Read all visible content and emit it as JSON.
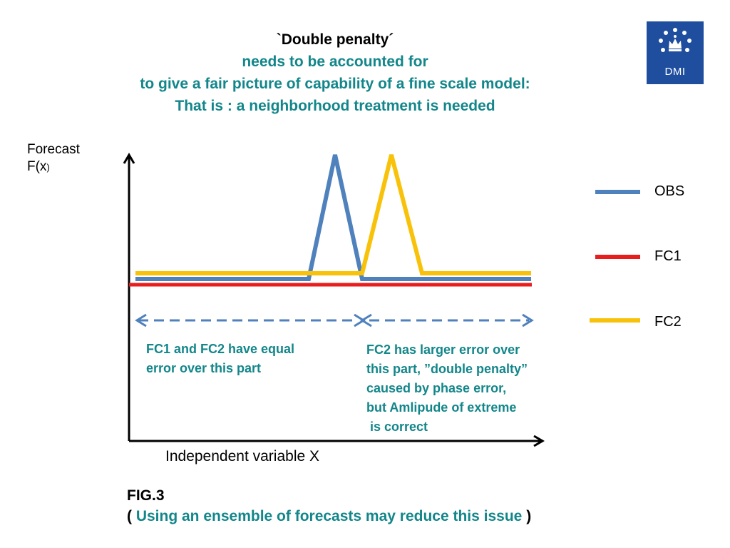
{
  "title": {
    "line1": "`Double penalty´",
    "line2": "needs to be accounted for",
    "line3": "to give a fair  picture of capability of a fine scale model:",
    "line4": "That is :  a neighborhood treatment is needed"
  },
  "logo": {
    "text": "DMI"
  },
  "axis": {
    "ylabel_line1": "Forecast",
    "ylabel_line2_main": "F(x",
    "ylabel_line2_small": ")",
    "xlabel": "Independent variable  X"
  },
  "legend": [
    {
      "label": "OBS",
      "color": "#4f81bd"
    },
    {
      "label": "FC1",
      "color": "#e81e1e"
    },
    {
      "label": "FC2",
      "color": "#f9c20a"
    }
  ],
  "notes": {
    "left": "FC1 and FC2 have equal\nerror over this part",
    "right": "FC2 has larger error over\nthis part, ”double penalty”\ncaused by phase error,\nbut Amlipude of extreme\n is correct"
  },
  "figure": {
    "label": "FIG.3",
    "open_paren": "( ",
    "caption": "Using an ensemble of forecasts may reduce this issue",
    "close_paren": " )"
  },
  "colors": {
    "teal": "#12868a",
    "arrow": "#4f81bd",
    "logo_bg": "#1f4e9e"
  }
}
